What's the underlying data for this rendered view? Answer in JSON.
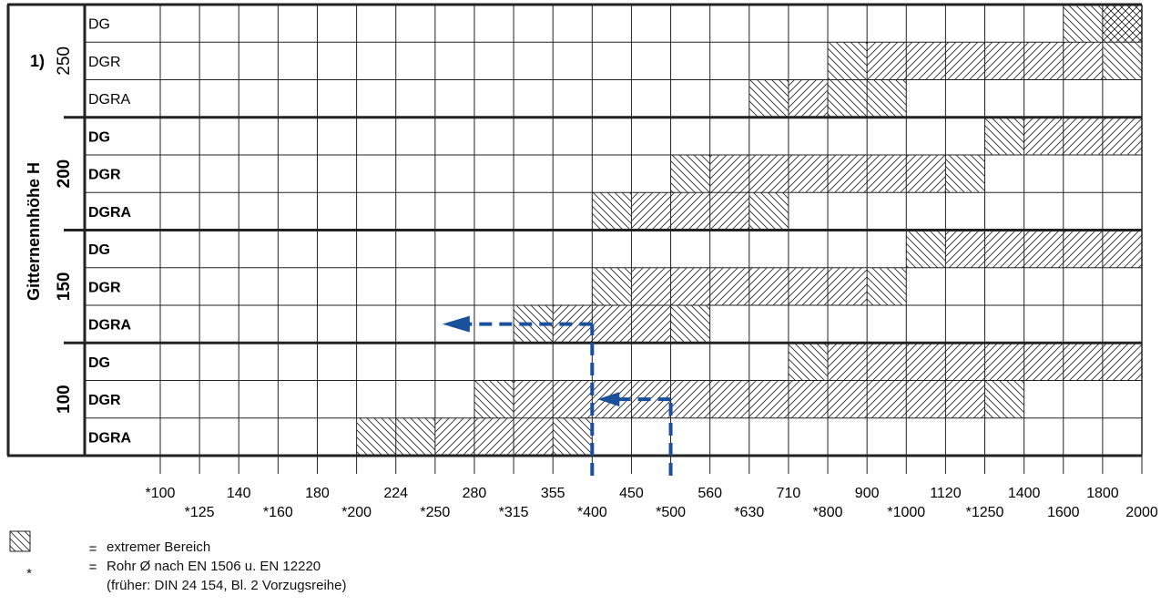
{
  "chart_data": {
    "type": "heatmap",
    "ylabel": "Gitternennhöhe H",
    "x_ticks": [
      "*100",
      "*125",
      "140",
      "*160",
      "180",
      "*200",
      "224",
      "*250",
      "280",
      "*315",
      "355",
      "*400",
      "450",
      "*500",
      "560",
      "*630",
      "710",
      "*800",
      "900",
      "*1000",
      "1120",
      "*1250",
      "1400",
      "1600",
      "1800",
      "2000"
    ],
    "groups": [
      {
        "height": "250",
        "note": "1)",
        "bold": false,
        "rows": [
          {
            "type": "DG",
            "extreme": [
              [
                1600,
                1800
              ]
            ],
            "range": [
              [
                1800,
                2000
              ]
            ],
            "extreme_outer": [
              [
                1800,
                2000
              ]
            ]
          },
          {
            "type": "DGR",
            "extreme": [
              [
                800,
                900
              ]
            ],
            "range": [
              [
                900,
                1800
              ]
            ],
            "extreme_outer": [
              [
                1800,
                2000
              ]
            ]
          },
          {
            "type": "DGRA",
            "extreme": [
              [
                630,
                710
              ]
            ],
            "range": [
              [
                710,
                800
              ]
            ],
            "extreme_outer": [
              [
                800,
                1000
              ]
            ]
          }
        ]
      },
      {
        "height": "200",
        "note": "",
        "bold": true,
        "rows": [
          {
            "type": "DG",
            "extreme": [
              [
                1250,
                1400
              ]
            ],
            "range": [
              [
                1400,
                2000
              ]
            ],
            "extreme_outer": []
          },
          {
            "type": "DGR",
            "extreme": [
              [
                500,
                560
              ]
            ],
            "range": [
              [
                560,
                1120
              ]
            ],
            "extreme_outer": [
              [
                1120,
                1250
              ]
            ]
          },
          {
            "type": "DGRA",
            "extreme": [
              [
                400,
                450
              ]
            ],
            "range": [
              [
                450,
                630
              ]
            ],
            "extreme_outer": [
              [
                630,
                710
              ]
            ]
          }
        ]
      },
      {
        "height": "150",
        "note": "",
        "bold": true,
        "rows": [
          {
            "type": "DG",
            "extreme": [
              [
                1000,
                1120
              ]
            ],
            "range": [
              [
                1120,
                2000
              ]
            ],
            "extreme_outer": []
          },
          {
            "type": "DGR",
            "extreme": [
              [
                400,
                450
              ]
            ],
            "range": [
              [
                450,
                900
              ]
            ],
            "extreme_outer": [
              [
                900,
                1000
              ]
            ]
          },
          {
            "type": "DGRA",
            "extreme": [
              [
                315,
                355
              ]
            ],
            "range": [
              [
                355,
                500
              ]
            ],
            "extreme_outer": [
              [
                500,
                560
              ]
            ]
          }
        ]
      },
      {
        "height": "100",
        "note": "",
        "bold": true,
        "rows": [
          {
            "type": "DG",
            "extreme": [
              [
                710,
                800
              ]
            ],
            "range": [
              [
                800,
                2000
              ]
            ],
            "extreme_outer": []
          },
          {
            "type": "DGR",
            "extreme": [
              [
                280,
                315
              ]
            ],
            "range": [
              [
                315,
                1250
              ]
            ],
            "extreme_outer": [
              [
                1250,
                1400
              ]
            ]
          },
          {
            "type": "DGRA",
            "extreme": [
              [
                200,
                250
              ]
            ],
            "range": [
              [
                250,
                355
              ]
            ],
            "extreme_outer": [
              [
                355,
                400
              ]
            ]
          }
        ]
      }
    ],
    "example_path": {
      "from": 500,
      "via": 400,
      "to": 250,
      "color": "#1a4f9c"
    }
  },
  "legend": {
    "items": [
      {
        "symbol": "hatch-box",
        "eq": "=",
        "text": "extremer Bereich"
      },
      {
        "symbol": "*",
        "eq": "=",
        "text": "Rohr Ø nach EN 1506 u. EN 12220"
      },
      {
        "symbol": "",
        "eq": "",
        "text": "(früher: DIN 24 154, Bl. 2 Vorzugsreihe)"
      }
    ]
  },
  "colors": {
    "grid": "#111111",
    "arrow": "#1a4f9c"
  }
}
